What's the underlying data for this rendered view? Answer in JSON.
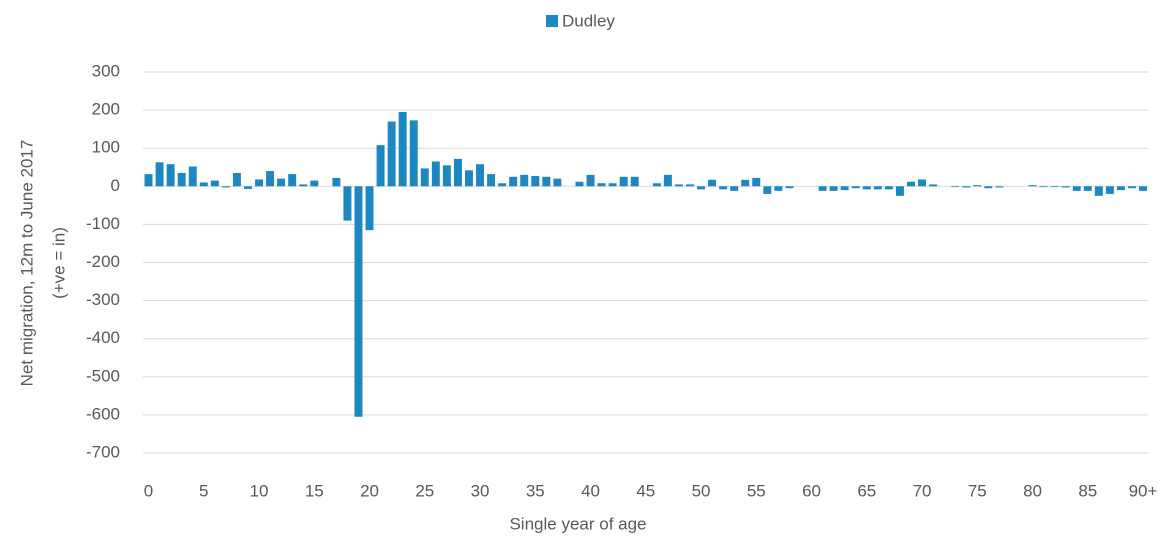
{
  "chart_data": {
    "type": "bar",
    "xlabel": "Single year of age",
    "ylabel": [
      "Net migration, 12m to June 2017",
      "(+ve = in)"
    ],
    "categories": [
      "0",
      null,
      null,
      null,
      null,
      "5",
      null,
      null,
      null,
      null,
      "10",
      null,
      null,
      null,
      null,
      "15",
      null,
      null,
      null,
      null,
      "20",
      null,
      null,
      null,
      null,
      "25",
      null,
      null,
      null,
      null,
      "30",
      null,
      null,
      null,
      null,
      "35",
      null,
      null,
      null,
      null,
      "40",
      null,
      null,
      null,
      null,
      "45",
      null,
      null,
      null,
      null,
      "50",
      null,
      null,
      null,
      null,
      "55",
      null,
      null,
      null,
      null,
      "60",
      null,
      null,
      null,
      null,
      "65",
      null,
      null,
      null,
      null,
      "70",
      null,
      null,
      null,
      null,
      "75",
      null,
      null,
      null,
      null,
      "80",
      null,
      null,
      null,
      null,
      "85",
      null,
      null,
      null,
      null,
      "90+"
    ],
    "series": [
      {
        "name": "Dudley",
        "color": "#1c87c0",
        "values": [
          32,
          63,
          58,
          35,
          52,
          10,
          15,
          -3,
          35,
          -7,
          18,
          40,
          20,
          32,
          5,
          15,
          0,
          22,
          -90,
          -605,
          -115,
          108,
          170,
          195,
          173,
          47,
          65,
          55,
          72,
          42,
          58,
          32,
          8,
          25,
          30,
          27,
          25,
          20,
          0,
          12,
          30,
          8,
          8,
          25,
          25,
          0,
          8,
          30,
          5,
          5,
          -8,
          17,
          -8,
          -12,
          17,
          22,
          -20,
          -12,
          -5,
          0,
          0,
          -12,
          -12,
          -10,
          -5,
          -8,
          -8,
          -8,
          -25,
          12,
          18,
          5,
          0,
          -2,
          -3,
          3,
          -5,
          -3,
          0,
          0,
          3,
          -2,
          -2,
          -3,
          -12,
          -12,
          -25,
          -20,
          -10,
          -5,
          -12
        ]
      }
    ],
    "ylim": [
      -700,
      300
    ],
    "yticks": [
      -700,
      -600,
      -500,
      -400,
      -300,
      -200,
      -100,
      0,
      100,
      200,
      300
    ],
    "grid": true,
    "legend": "top"
  }
}
